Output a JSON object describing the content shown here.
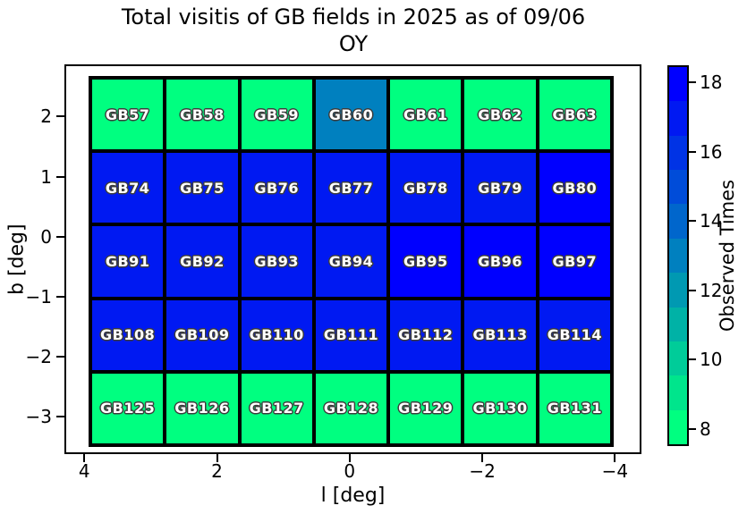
{
  "title": {
    "line1": "Total visitis of GB fields in 2025 as of 09/06",
    "line2": "OY"
  },
  "chart_data": {
    "type": "heatmap",
    "title": "Total visitis of GB fields in 2025 as of 09/06\nOY",
    "xlabel": "l [deg]",
    "ylabel": "b [deg]",
    "colorbar_label": "Observed Times",
    "x_axis_range": [
      4.3,
      -4.4
    ],
    "y_axis_range": [
      -3.62,
      2.87
    ],
    "x_ticks": [
      {
        "label": "4",
        "value": 4
      },
      {
        "label": "2",
        "value": 2
      },
      {
        "label": "0",
        "value": 0
      },
      {
        "label": "−2",
        "value": -2
      },
      {
        "label": "−4",
        "value": -4
      }
    ],
    "y_ticks": [
      {
        "label": "2",
        "value": 2
      },
      {
        "label": "1",
        "value": 1
      },
      {
        "label": "0",
        "value": 0
      },
      {
        "label": "−1",
        "value": -1
      },
      {
        "label": "−2",
        "value": -2
      },
      {
        "label": "−3",
        "value": -3
      }
    ],
    "colorbar_range": [
      7.5,
      18.5
    ],
    "colorbar_ticks": [
      {
        "label": "18",
        "value": 18
      },
      {
        "label": "16",
        "value": 16
      },
      {
        "label": "14",
        "value": 14
      },
      {
        "label": "12",
        "value": 12
      },
      {
        "label": "10",
        "value": 10
      },
      {
        "label": "8",
        "value": 8
      }
    ],
    "colorbar_bands_top_to_bottom": [
      {
        "value": 18,
        "color": "#0000FF"
      },
      {
        "value": 17,
        "color": "#0019F2"
      },
      {
        "value": 16,
        "color": "#0033E5"
      },
      {
        "value": 15,
        "color": "#004CD9"
      },
      {
        "value": 14,
        "color": "#0066CC"
      },
      {
        "value": 13,
        "color": "#0080BF"
      },
      {
        "value": 12,
        "color": "#0099B2"
      },
      {
        "value": 11,
        "color": "#00B2A6"
      },
      {
        "value": 10,
        "color": "#00CC99"
      },
      {
        "value": 9,
        "color": "#00E58C"
      },
      {
        "value": 8,
        "color": "#00FF80"
      }
    ],
    "value_colors": {
      "8": "#00FF80",
      "13": "#0080BF",
      "17": "#0019F2",
      "18": "#0000FF"
    },
    "rows": [
      {
        "b_center": 2,
        "fields": [
          "GB57",
          "GB58",
          "GB59",
          "GB60",
          "GB61",
          "GB62",
          "GB63"
        ],
        "values": [
          8,
          8,
          8,
          13,
          8,
          8,
          8
        ]
      },
      {
        "b_center": 0.8,
        "fields": [
          "GB74",
          "GB75",
          "GB76",
          "GB77",
          "GB78",
          "GB79",
          "GB80"
        ],
        "values": [
          17,
          17,
          17,
          17,
          17,
          17,
          18
        ]
      },
      {
        "b_center": -0.4,
        "fields": [
          "GB91",
          "GB92",
          "GB93",
          "GB94",
          "GB95",
          "GB96",
          "GB97"
        ],
        "values": [
          17,
          17,
          17,
          17,
          18,
          18,
          18
        ]
      },
      {
        "b_center": -1.6,
        "fields": [
          "GB108",
          "GB109",
          "GB110",
          "GB111",
          "GB112",
          "GB113",
          "GB114"
        ],
        "values": [
          17,
          17,
          17,
          17,
          17,
          17,
          17
        ]
      },
      {
        "b_center": -2.9,
        "fields": [
          "GB125",
          "GB126",
          "GB127",
          "GB128",
          "GB129",
          "GB130",
          "GB131"
        ],
        "values": [
          8,
          8,
          8,
          8,
          8,
          8,
          8
        ]
      }
    ]
  }
}
